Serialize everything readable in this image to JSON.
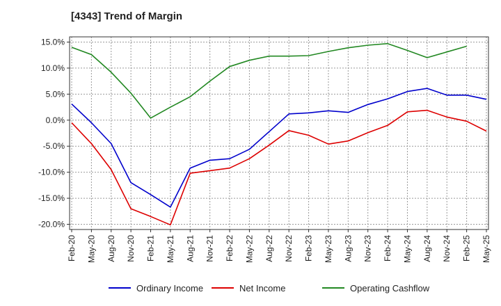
{
  "chart_data": {
    "type": "line",
    "title": "[4343]  Trend of Margin",
    "xlabel": "",
    "ylabel": "",
    "x_tick_labels": [
      "Feb-20",
      "May-20",
      "Aug-20",
      "Nov-20",
      "Feb-21",
      "May-21",
      "Aug-21",
      "Nov-21",
      "Feb-22",
      "May-22",
      "Aug-22",
      "Nov-22",
      "Feb-23",
      "May-23",
      "Aug-23",
      "Nov-23",
      "Feb-24",
      "May-24",
      "Aug-24",
      "Nov-24",
      "Feb-25",
      "May-25"
    ],
    "y_tick_labels": [
      "15.0%",
      "10.0%",
      "5.0%",
      "0.0%",
      "-5.0%",
      "-10.0%",
      "-15.0%",
      "-20.0%"
    ],
    "y_ticks": [
      15,
      10,
      5,
      0,
      -5,
      -10,
      -15,
      -20
    ],
    "ylim": [
      -21,
      16
    ],
    "grid": true,
    "legend_position": "bottom",
    "series": [
      {
        "name": "Ordinary Income",
        "color": "#0000cc",
        "values": [
          3.1,
          -0.5,
          -4.5,
          -12.0,
          -14.3,
          -16.7,
          -9.2,
          -7.7,
          -7.4,
          -5.6,
          -2.2,
          1.2,
          1.4,
          1.8,
          1.5,
          3.0,
          4.1,
          5.5,
          6.1,
          4.8,
          4.8,
          4.0
        ]
      },
      {
        "name": "Net Income",
        "color": "#dd0000",
        "values": [
          -0.5,
          -4.5,
          -9.5,
          -17.0,
          -18.5,
          -20.1,
          -10.2,
          -9.7,
          -9.2,
          -7.4,
          -4.8,
          -2.0,
          -2.9,
          -4.6,
          -4.0,
          -2.4,
          -1.0,
          1.6,
          1.9,
          0.6,
          -0.2,
          -2.1
        ]
      },
      {
        "name": "Operating Cashflow",
        "color": "#228822",
        "values": [
          14.0,
          12.6,
          9.2,
          5.2,
          0.4,
          2.5,
          4.5,
          7.5,
          10.3,
          11.5,
          12.3,
          12.3,
          12.4,
          13.2,
          13.9,
          14.4,
          14.7,
          13.4,
          12.0,
          13.1,
          14.2
        ]
      }
    ]
  }
}
